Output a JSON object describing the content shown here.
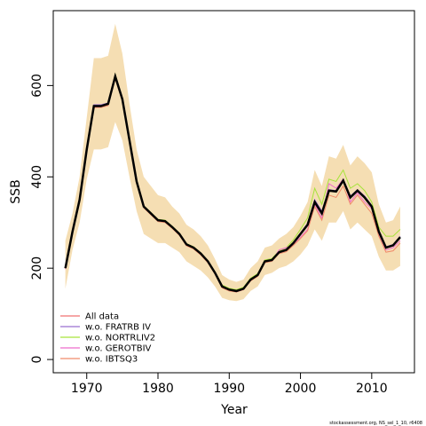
{
  "chart_data": {
    "type": "line",
    "x_label": "Year",
    "y_label": "SSB",
    "footnote": "stockassessment.org, NS_sel_1_10, r6408",
    "xlim": [
      1965.3,
      2016.0
    ],
    "xticks": [
      1970,
      1980,
      1990,
      2000,
      2010
    ],
    "ylim": [
      -29,
      764
    ],
    "yticks": [
      0,
      200,
      400,
      600
    ],
    "legend": "bottom-left",
    "x": [
      1967,
      1968,
      1969,
      1970,
      1971,
      1972,
      1973,
      1974,
      1975,
      1976,
      1977,
      1978,
      1979,
      1980,
      1981,
      1982,
      1983,
      1984,
      1985,
      1986,
      1987,
      1988,
      1989,
      1990,
      1991,
      1992,
      1993,
      1994,
      1995,
      1996,
      1997,
      1998,
      1999,
      2000,
      2001,
      2002,
      2003,
      2004,
      2005,
      2006,
      2007,
      2008,
      2009,
      2010,
      2011,
      2012,
      2013,
      2014
    ],
    "band": {
      "color": "#f5deb3",
      "upper": [
        260,
        320,
        400,
        530,
        660,
        660,
        665,
        735,
        670,
        560,
        460,
        400,
        380,
        360,
        355,
        335,
        320,
        295,
        285,
        270,
        250,
        220,
        185,
        175,
        170,
        175,
        200,
        215,
        245,
        250,
        265,
        275,
        290,
        315,
        345,
        415,
        380,
        445,
        440,
        470,
        425,
        445,
        430,
        410,
        340,
        300,
        305,
        335
      ],
      "lower": [
        155,
        240,
        300,
        395,
        460,
        460,
        465,
        520,
        480,
        400,
        325,
        275,
        265,
        255,
        255,
        245,
        235,
        215,
        205,
        195,
        180,
        160,
        135,
        130,
        128,
        132,
        150,
        160,
        185,
        190,
        200,
        205,
        215,
        230,
        250,
        285,
        260,
        300,
        300,
        325,
        285,
        300,
        285,
        270,
        225,
        195,
        195,
        205
      ]
    },
    "series": [
      {
        "name": "w.o. FRATRB IV",
        "color": "#9a6fd0",
        "values": [
          200,
          282,
          352,
          462,
          558,
          558,
          562,
          622,
          572,
          482,
          392,
          336,
          321,
          306,
          304,
          291,
          276,
          253,
          246,
          233,
          216,
          191,
          161,
          154,
          151,
          156,
          176,
          186,
          216,
          219,
          236,
          241,
          256,
          277,
          298,
          350,
          325,
          372,
          370,
          394,
          358,
          372,
          358,
          338,
          282,
          247,
          252,
          270
        ]
      },
      {
        "name": "w.o. NORTRLIV2",
        "color": "#a6e33a",
        "values": [
          200,
          280,
          350,
          460,
          556,
          556,
          561,
          625,
          572,
          482,
          392,
          337,
          322,
          307,
          305,
          292,
          277,
          254,
          247,
          234,
          217,
          192,
          163,
          156,
          153,
          158,
          178,
          188,
          218,
          221,
          238,
          245,
          262,
          285,
          310,
          375,
          340,
          395,
          390,
          415,
          375,
          385,
          370,
          345,
          290,
          270,
          270,
          285
        ]
      },
      {
        "name": "w.o. GEROTBIV",
        "color": "#ee6ccc",
        "values": [
          198,
          278,
          348,
          458,
          553,
          553,
          558,
          618,
          568,
          478,
          388,
          333,
          318,
          303,
          301,
          288,
          273,
          250,
          243,
          230,
          213,
          188,
          158,
          151,
          148,
          153,
          173,
          183,
          213,
          216,
          240,
          245,
          250,
          268,
          285,
          340,
          310,
          385,
          375,
          395,
          345,
          365,
          345,
          330,
          275,
          240,
          245,
          260
        ]
      },
      {
        "name": "w.o. IBTSQ3",
        "color": "#f08a6a",
        "values": [
          199,
          279,
          349,
          459,
          552,
          552,
          556,
          615,
          566,
          476,
          386,
          332,
          317,
          302,
          300,
          287,
          272,
          249,
          242,
          229,
          212,
          187,
          157,
          150,
          148,
          153,
          172,
          182,
          212,
          215,
          232,
          236,
          250,
          265,
          282,
          335,
          305,
          360,
          355,
          380,
          340,
          360,
          340,
          320,
          270,
          235,
          238,
          255
        ]
      },
      {
        "name": "All data",
        "color": "#f07070",
        "line_color": "#000000",
        "values": [
          200,
          280,
          350,
          460,
          555,
          555,
          560,
          620,
          570,
          480,
          390,
          335,
          320,
          305,
          303,
          290,
          275,
          252,
          245,
          232,
          215,
          190,
          160,
          153,
          150,
          155,
          175,
          185,
          215,
          218,
          235,
          240,
          255,
          275,
          295,
          345,
          320,
          370,
          368,
          392,
          355,
          370,
          355,
          335,
          280,
          245,
          250,
          268
        ]
      }
    ]
  }
}
